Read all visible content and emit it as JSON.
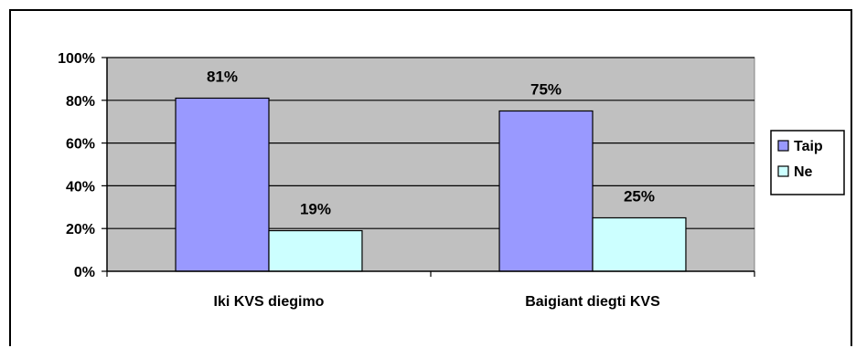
{
  "chart_data": {
    "type": "bar",
    "categories": [
      "Iki KVS diegimo",
      "Baigiant diegti KVS"
    ],
    "series": [
      {
        "name": "Taip",
        "values": [
          81,
          75
        ],
        "labels": [
          "81%",
          "75%"
        ],
        "color": "#9999ff"
      },
      {
        "name": "Ne",
        "values": [
          19,
          25
        ],
        "labels": [
          "19%",
          "25%"
        ],
        "color": "#ccffff"
      }
    ],
    "ylim": [
      0,
      100
    ],
    "yticks": [
      0,
      20,
      40,
      60,
      80,
      100
    ],
    "ytick_labels": [
      "0%",
      "20%",
      "40%",
      "60%",
      "80%",
      "100%"
    ],
    "grid": true,
    "legend": "right",
    "plot_background": "#c0c0c0"
  }
}
